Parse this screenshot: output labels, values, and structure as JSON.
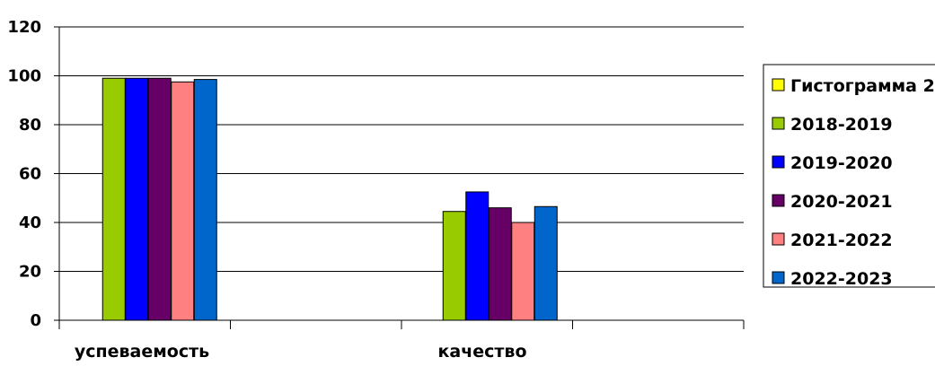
{
  "chart_data": {
    "type": "bar",
    "categories": [
      "успеваемость",
      "качество"
    ],
    "ylim": [
      0,
      120
    ],
    "yticks": [
      0,
      20,
      40,
      60,
      80,
      100,
      120
    ],
    "grid": true,
    "legend_position": "right",
    "legend_entries": [
      "Гистограмма 2",
      "2018-2019",
      "2019-2020",
      "2020-2021",
      "2021-2022",
      "2022-2023"
    ],
    "legend_colors": [
      "#FFFF00",
      "#99CC00",
      "#0000FF",
      "#660066",
      "#FF8080",
      "#0066CC"
    ],
    "series": [
      {
        "name": "2018-2019",
        "color": "#99CC00",
        "values": [
          99,
          44.5
        ]
      },
      {
        "name": "2019-2020",
        "color": "#0000FF",
        "values": [
          99,
          52.5
        ]
      },
      {
        "name": "2020-2021",
        "color": "#660066",
        "values": [
          99,
          46
        ]
      },
      {
        "name": "2021-2022",
        "color": "#FF8080",
        "values": [
          97.5,
          40
        ]
      },
      {
        "name": "2022-2023",
        "color": "#0066CC",
        "values": [
          98.5,
          46.5
        ]
      }
    ]
  }
}
